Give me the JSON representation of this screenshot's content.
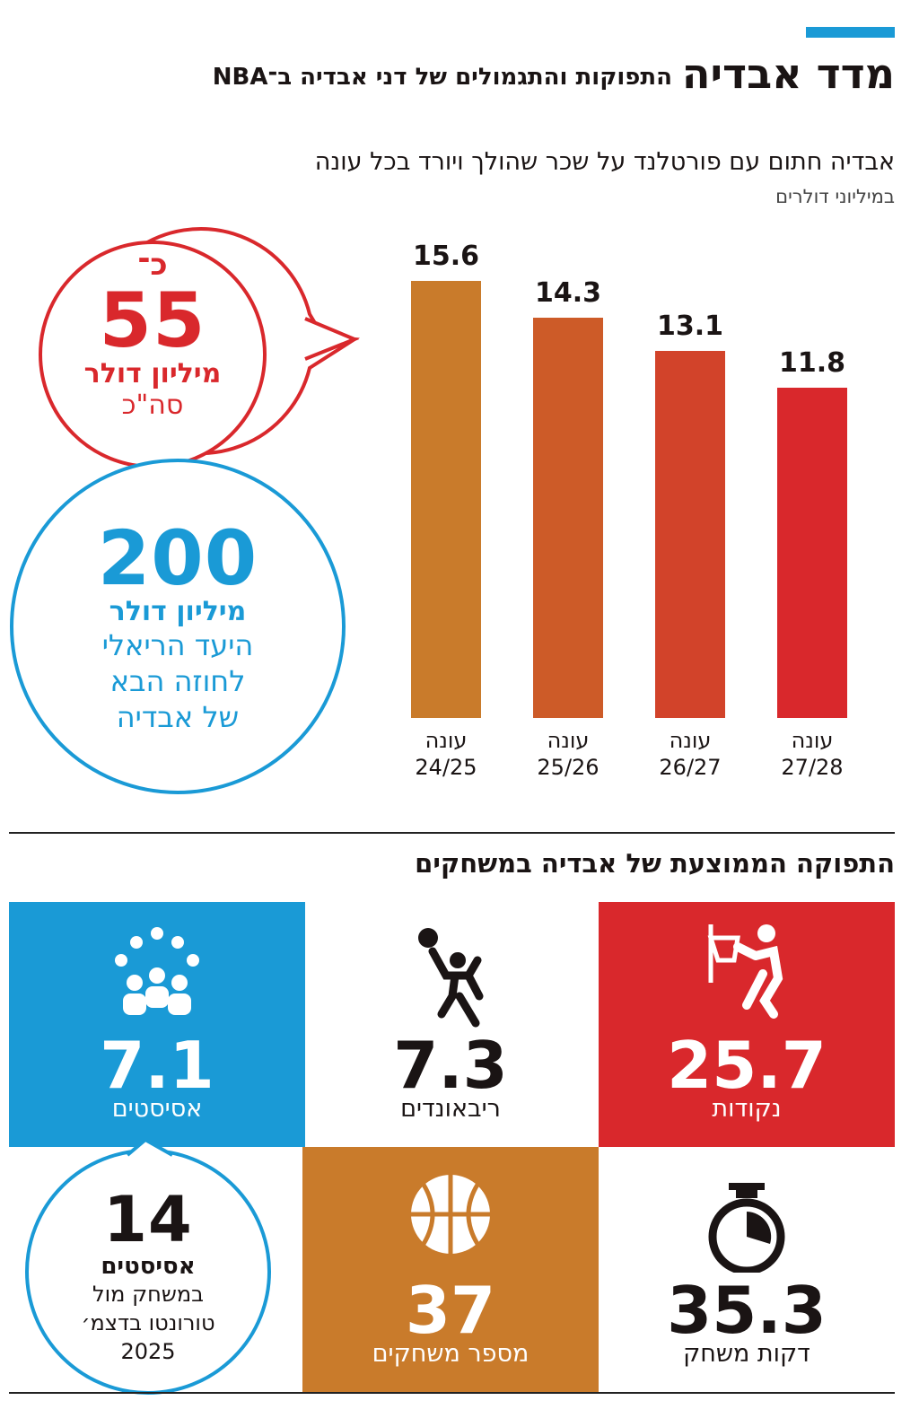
{
  "header": {
    "title": "מדד אבדיה",
    "subtitle": "התפוקות והתגמולים של דני אבדיה ב־NBA"
  },
  "chart_data": {
    "type": "bar",
    "title": "אבדיה חתום עם פורטלנד על שכר שהולך ויורד בכל עונה",
    "subtitle": "במיליוני דולרים",
    "categories": [
      "עונה 24/25",
      "עונה 25/26",
      "עונה 26/27",
      "עונה 27/28"
    ],
    "values": [
      15.6,
      14.3,
      13.1,
      11.8
    ],
    "colors": [
      "#c97b2b",
      "#cd5b28",
      "#d2432a",
      "#d9282c"
    ]
  },
  "total_callout": {
    "prefix": "כ־",
    "value": 55,
    "unit": "מיליון דולר",
    "label": "סה\"כ"
  },
  "target_callout": {
    "value": 200,
    "unit": "מיליון דולר",
    "lines": [
      "היעד הריאלי",
      "לחוזה הבא",
      "של אבדיה"
    ]
  },
  "stats": {
    "title": "התפוקה הממוצעת של אבדיה במשחקים",
    "tiles": [
      {
        "value": 25.7,
        "label": "נקודות"
      },
      {
        "value": 7.3,
        "label": "ריבאונדים"
      },
      {
        "value": 7.1,
        "label": "אסיסטים"
      },
      {
        "value": 35.3,
        "label": "דקות משחק"
      },
      {
        "value": 37,
        "label": "מספר משחקים"
      }
    ]
  },
  "assist_callout": {
    "value": 14,
    "unit": "אסיסטים",
    "lines": [
      "במשחק מול",
      "טורונטו בדצמ׳",
      "2025"
    ]
  }
}
